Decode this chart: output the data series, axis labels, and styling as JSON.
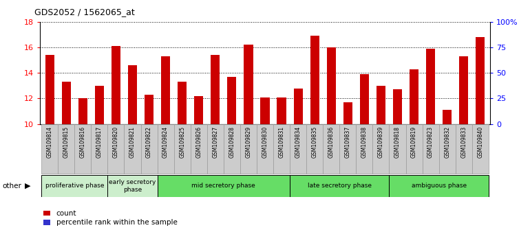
{
  "title": "GDS2052 / 1562065_at",
  "samples": [
    "GSM109814",
    "GSM109815",
    "GSM109816",
    "GSM109817",
    "GSM109820",
    "GSM109821",
    "GSM109822",
    "GSM109824",
    "GSM109825",
    "GSM109826",
    "GSM109827",
    "GSM109828",
    "GSM109829",
    "GSM109830",
    "GSM109831",
    "GSM109834",
    "GSM109835",
    "GSM109836",
    "GSM109837",
    "GSM109838",
    "GSM109839",
    "GSM109818",
    "GSM109819",
    "GSM109823",
    "GSM109832",
    "GSM109833",
    "GSM109840"
  ],
  "count_values": [
    15.4,
    13.3,
    12.0,
    13.0,
    16.1,
    14.6,
    12.3,
    15.3,
    13.3,
    12.2,
    15.4,
    13.7,
    16.2,
    12.1,
    12.1,
    12.8,
    16.9,
    16.0,
    11.7,
    13.9,
    13.0,
    12.7,
    14.3,
    15.9,
    11.1,
    15.3,
    16.8
  ],
  "pct_values": [
    3.5,
    2.5,
    2.8,
    3.2,
    4.5,
    3.8,
    2.5,
    3.8,
    2.5,
    3.0,
    3.5,
    2.8,
    4.5,
    2.5,
    2.8,
    3.0,
    4.5,
    3.8,
    2.5,
    3.8,
    3.0,
    2.8,
    3.5,
    3.8,
    2.8,
    3.5,
    4.5
  ],
  "ymin": 10,
  "ymax": 18,
  "yticks_left": [
    10,
    12,
    14,
    16,
    18
  ],
  "right_yticks_pct": [
    0,
    25,
    50,
    75,
    100
  ],
  "right_ylabels": [
    "0",
    "25",
    "50",
    "75",
    "100%"
  ],
  "phases": [
    {
      "label": "proliferative phase",
      "start": 0,
      "end": 4,
      "color": "#cceecc"
    },
    {
      "label": "early secretory\nphase",
      "start": 4,
      "end": 7,
      "color": "#cceecc"
    },
    {
      "label": "mid secretory phase",
      "start": 7,
      "end": 15,
      "color": "#66dd66"
    },
    {
      "label": "late secretory phase",
      "start": 15,
      "end": 21,
      "color": "#66dd66"
    },
    {
      "label": "ambiguous phase",
      "start": 21,
      "end": 27,
      "color": "#66dd66"
    }
  ],
  "phase_dividers": [
    4,
    7,
    15,
    21
  ],
  "bar_color_count": "#cc0000",
  "bar_color_pct": "#3333cc",
  "bar_width": 0.55,
  "legend_count": "count",
  "legend_pct": "percentile rank within the sample",
  "other_label": "other",
  "tick_bg_color": "#cccccc",
  "tick_border_color": "#999999"
}
